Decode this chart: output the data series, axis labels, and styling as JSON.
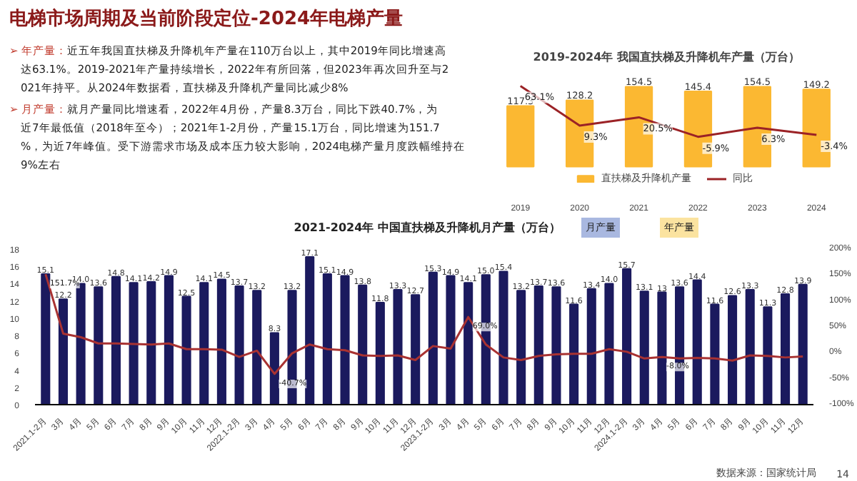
{
  "chart_data": [
    {
      "type": "other",
      "title": "电梯市场周期及当前阶段定位-2024年电梯产量",
      "annotations": [
        "➢ 年产量：近五年我国直扶梯及升降机年产量在110万台以上，其中2019年同比增速高达63.1%。2019-2021年产量持续增长，2022年有所回落，但2023年再次回升至与2021年持平。从2024年数据看，直扶梯及升降机产量同比减少8%",
        "➢ 月产量：就月产量同比增速看，2022年4月份，产量8.3万台，同比下跌40.7%，为近7年最低值（2018年至今）；2021年1-2月份，产量15.1万台，同比增速为151.7%，为近7年峰值。受下游需求市场及成本压力较大影响，2024电梯产量月度跌幅维持在9%左右",
        "数据来源：国家统计局",
        "14"
      ]
    },
    {
      "type": "bar",
      "title": "2019-2024年  我国直扶梯及升降机年产量（万台）",
      "categories": [
        "2019",
        "2020",
        "2021",
        "2022",
        "2023",
        "2024"
      ],
      "series": [
        {
          "name": "直扶梯及升降机产量",
          "color": "#fbb832",
          "values": [
            117.3,
            128.2,
            154.5,
            145.4,
            154.5,
            149.2
          ]
        },
        {
          "name": "同比",
          "type": "line",
          "axis": "y2",
          "color": "#9b2226",
          "values": [
            63.1,
            9.3,
            20.5,
            -5.9,
            6.3,
            -3.4
          ],
          "value_labels": [
            "63.1%",
            "9.3%",
            "20.5%",
            "-5.9%",
            "6.3%",
            "-3.4%"
          ]
        }
      ],
      "data_labels": true,
      "legend": "bottom",
      "tick_labels": "x",
      "grid": false
    },
    {
      "type": "bar",
      "title": "2021-2024年  中国直扶梯及升降机月产量（万台）",
      "annotations": [
        "月产量",
        "年产量"
      ],
      "categories": [
        "2021.1-2月",
        "3月",
        "4月",
        "5月",
        "6月",
        "7月",
        "8月",
        "9月",
        "10月",
        "11月",
        "12月",
        "2022.1-2月",
        "3月",
        "4月",
        "5月",
        "6月",
        "7月",
        "8月",
        "9月",
        "10月",
        "11月",
        "12月",
        "2023.1-2月",
        "3月",
        "4月",
        "5月",
        "6月",
        "7月",
        "8月",
        "9月",
        "10月",
        "11月",
        "12月",
        "2024.1-2月",
        "3月",
        "4月",
        "5月",
        "6月",
        "7月",
        "8月",
        "9月",
        "10月",
        "11月",
        "12月"
      ],
      "series": [
        {
          "color": "#1b1a5e",
          "values": [
            15.1,
            12.2,
            14.0,
            13.6,
            14.8,
            14.1,
            14.2,
            14.9,
            12.5,
            14.1,
            14.5,
            13.7,
            13.2,
            8.3,
            13.2,
            17.1,
            15.1,
            14.9,
            13.8,
            11.8,
            13.3,
            12.7,
            15.3,
            14.9,
            14.1,
            15.0,
            15.4,
            13.2,
            13.7,
            13.6,
            11.6,
            13.4,
            14.0,
            15.7,
            13.1,
            13,
            13.6,
            14.4,
            11.6,
            12.6,
            13.3,
            11.3,
            12.8,
            13.9
          ],
          "value_labels": [
            "15.1",
            "12.2",
            "14.0",
            "13.6",
            "14.8",
            "14.1",
            "14.2",
            "14.9",
            "12.5",
            "14.1",
            "14.5",
            "13.7",
            "13.2",
            "8.3",
            "13.2",
            "17.1",
            "15.1",
            "14.9",
            "13.8",
            "11.8",
            "13.3",
            "12.7",
            "15.3",
            "14.9",
            "14.1",
            "15.0",
            "15.4",
            "13.2",
            "13.7",
            "13.6",
            "11.6",
            "13.4",
            "14.0",
            "15.7",
            "13.1",
            "13",
            "13.6",
            "14.4",
            "11.6",
            "12.6",
            "13.3",
            "11.3",
            "12.8",
            "13.9"
          ]
        },
        {
          "type": "line",
          "axis": "y2",
          "color": "#a83232",
          "values": [
            151.7,
            37,
            30,
            18,
            18,
            17,
            16,
            18,
            7,
            7,
            6,
            -8,
            4,
            -40.7,
            -1,
            16,
            7,
            5,
            -5,
            -6,
            -5,
            -14,
            13,
            8,
            69.0,
            16,
            -9,
            -14,
            -6,
            -3,
            -2,
            -2,
            7,
            2,
            -11,
            -8.0,
            -11,
            -10,
            -11,
            -15,
            -5,
            -6,
            -9,
            -7
          ],
          "value_labels": [
            "151.7%",
            null,
            null,
            null,
            null,
            null,
            null,
            null,
            null,
            null,
            null,
            null,
            null,
            "-40.7%",
            null,
            null,
            null,
            null,
            null,
            null,
            null,
            null,
            null,
            null,
            "69.0%",
            null,
            null,
            null,
            null,
            null,
            null,
            null,
            null,
            null,
            null,
            "-8.0%",
            null,
            null,
            null,
            null,
            null,
            null,
            null,
            null
          ]
        }
      ],
      "ylim": [
        0,
        18
      ],
      "yticks": [
        0,
        2,
        4,
        6,
        8,
        10,
        12,
        14,
        16,
        18
      ],
      "y2lim": [
        -100,
        200
      ],
      "y2ticks": [
        {
          "value": -100,
          "label": "-100%"
        },
        {
          "value": -50,
          "label": "-50%"
        },
        {
          "value": 0,
          "label": "0%"
        },
        {
          "value": 50,
          "label": "50%"
        },
        {
          "value": 100,
          "label": "100%"
        },
        {
          "value": 150,
          "label": "150%"
        },
        {
          "value": 200,
          "label": "200%"
        }
      ],
      "grid": false
    }
  ]
}
